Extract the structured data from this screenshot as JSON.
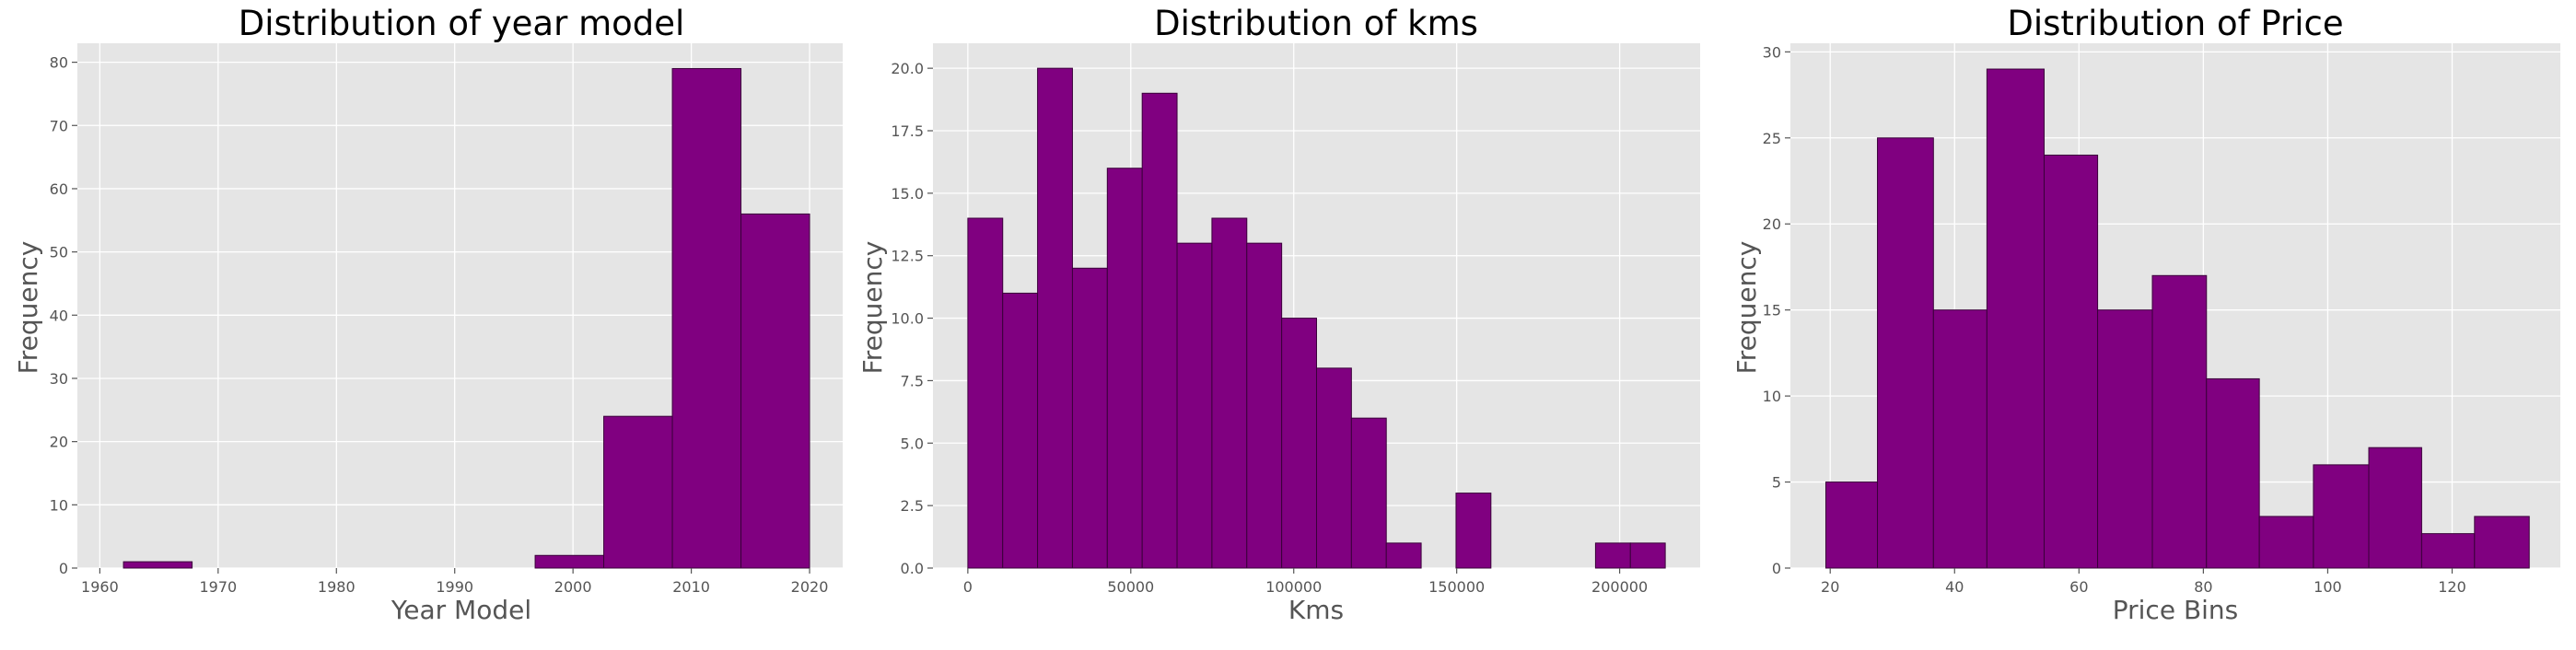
{
  "chart_data": [
    {
      "type": "bar",
      "title": "Distribution of year model",
      "xlabel": "Year Model",
      "ylabel": "Frequency",
      "xlim": [
        1958.1,
        2022.8
      ],
      "ylim": [
        0,
        83
      ],
      "xticks": [
        1960,
        1970,
        1980,
        1990,
        2000,
        2010,
        2020
      ],
      "yticks": [
        0,
        10,
        20,
        30,
        40,
        50,
        60,
        70,
        80
      ],
      "grid": true,
      "bins": [
        {
          "x0": 1962,
          "x1": 1967.8,
          "count": 1
        },
        {
          "x0": 1996.8,
          "x1": 2002.6,
          "count": 2
        },
        {
          "x0": 2002.6,
          "x1": 2008.4,
          "count": 24
        },
        {
          "x0": 2008.4,
          "x1": 2014.2,
          "count": 79
        },
        {
          "x0": 2014.2,
          "x1": 2020,
          "count": 56
        }
      ]
    },
    {
      "type": "bar",
      "title": "Distribution of kms",
      "xlabel": "Kms",
      "ylabel": "Frequency",
      "xlim": [
        -10700,
        224700
      ],
      "ylim": [
        0,
        21
      ],
      "xticks": [
        0,
        50000,
        100000,
        150000,
        200000
      ],
      "yticks": [
        0.0,
        2.5,
        5.0,
        7.5,
        10.0,
        12.5,
        15.0,
        17.5,
        20.0
      ],
      "ytick_decimals": 1,
      "grid": true,
      "bins": [
        {
          "x0": 0,
          "x1": 10700,
          "count": 14
        },
        {
          "x0": 10700,
          "x1": 21400,
          "count": 11
        },
        {
          "x0": 21400,
          "x1": 32100,
          "count": 20
        },
        {
          "x0": 32100,
          "x1": 42800,
          "count": 12
        },
        {
          "x0": 42800,
          "x1": 53500,
          "count": 16
        },
        {
          "x0": 53500,
          "x1": 64200,
          "count": 19
        },
        {
          "x0": 64200,
          "x1": 74900,
          "count": 13
        },
        {
          "x0": 74900,
          "x1": 85600,
          "count": 14
        },
        {
          "x0": 85600,
          "x1": 96300,
          "count": 13
        },
        {
          "x0": 96300,
          "x1": 107000,
          "count": 10
        },
        {
          "x0": 107000,
          "x1": 117700,
          "count": 8
        },
        {
          "x0": 117700,
          "x1": 128400,
          "count": 6
        },
        {
          "x0": 128400,
          "x1": 139100,
          "count": 1
        },
        {
          "x0": 149800,
          "x1": 160500,
          "count": 3
        },
        {
          "x0": 192600,
          "x1": 203300,
          "count": 1
        },
        {
          "x0": 203300,
          "x1": 214000,
          "count": 1
        }
      ]
    },
    {
      "type": "bar",
      "title": "Distribution of Price",
      "xlabel": "Price Bins",
      "ylabel": "Frequency",
      "xlim": [
        13.6,
        137.4
      ],
      "ylim": [
        0,
        30.5
      ],
      "xticks": [
        20,
        40,
        60,
        80,
        100,
        120
      ],
      "yticks": [
        0,
        5,
        10,
        15,
        20,
        25,
        30
      ],
      "grid": true,
      "bins": [
        {
          "x0": 19.3,
          "x1": 27.6,
          "count": 5
        },
        {
          "x0": 27.6,
          "x1": 36.6,
          "count": 25
        },
        {
          "x0": 36.6,
          "x1": 45.2,
          "count": 15
        },
        {
          "x0": 45.2,
          "x1": 54.4,
          "count": 29
        },
        {
          "x0": 54.4,
          "x1": 63.0,
          "count": 24
        },
        {
          "x0": 63.0,
          "x1": 71.8,
          "count": 15
        },
        {
          "x0": 71.8,
          "x1": 80.5,
          "count": 17
        },
        {
          "x0": 80.5,
          "x1": 89.0,
          "count": 11
        },
        {
          "x0": 89.0,
          "x1": 97.7,
          "count": 3
        },
        {
          "x0": 97.7,
          "x1": 106.6,
          "count": 6
        },
        {
          "x0": 106.6,
          "x1": 115.1,
          "count": 7
        },
        {
          "x0": 115.1,
          "x1": 123.6,
          "count": 2
        },
        {
          "x0": 123.6,
          "x1": 132.4,
          "count": 3
        }
      ]
    }
  ],
  "colors": {
    "bar_fill": "#800080",
    "bar_edge": "#3a003a",
    "plot_background": "#e5e5e5",
    "grid": "#ffffff",
    "text": "#555555",
    "title": "#000000"
  }
}
